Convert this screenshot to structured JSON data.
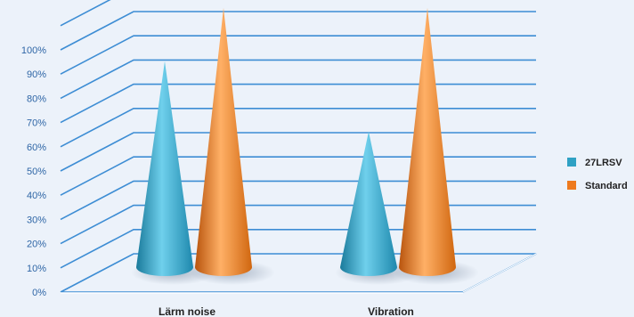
{
  "chart_data": {
    "type": "bar",
    "style": "3d-cone",
    "categories": [
      "Lärm noise",
      "Vibration"
    ],
    "series": [
      {
        "name": "27LRSV",
        "values": [
          85,
          56
        ],
        "color": "#2fa1c4"
      },
      {
        "name": "Standard",
        "values": [
          107,
          107
        ],
        "color": "#ee7a1e"
      }
    ],
    "y_ticks": [
      "0%",
      "10%",
      "20%",
      "30%",
      "40%",
      "50%",
      "60%",
      "70%",
      "80%",
      "90%",
      "100%"
    ],
    "ylim": [
      0,
      110
    ],
    "grid": true,
    "legend_position": "right",
    "title": "",
    "xlabel": "",
    "ylabel": ""
  }
}
